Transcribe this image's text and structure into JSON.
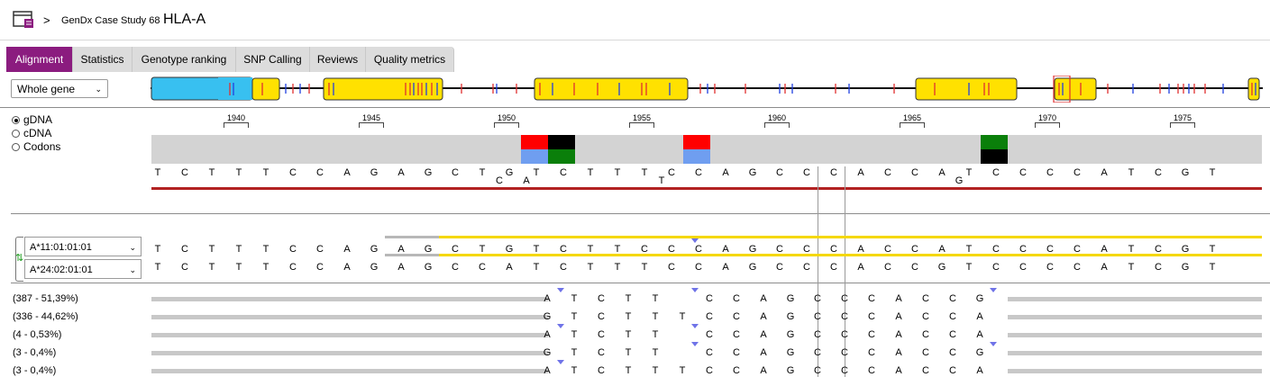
{
  "header": {
    "separator": ">",
    "case_name": "GenDx Case Study 68",
    "locus": "HLA-A"
  },
  "tabs": [
    {
      "label": "Alignment",
      "active": true
    },
    {
      "label": "Statistics",
      "active": false
    },
    {
      "label": "Genotype ranking",
      "active": false
    },
    {
      "label": "SNP Calling",
      "active": false
    },
    {
      "label": "Reviews",
      "active": false
    },
    {
      "label": "Quality metrics",
      "active": false
    }
  ],
  "region_select": {
    "value": "Whole gene",
    "icon": "chevron-down-icon"
  },
  "view_modes": [
    {
      "label": "gDNA",
      "selected": true
    },
    {
      "label": "cDNA",
      "selected": false
    },
    {
      "label": "Codons",
      "selected": false
    }
  ],
  "position_ticks": [
    "1940",
    "1945",
    "1950",
    "1955",
    "1960",
    "1965",
    "1970",
    "1975"
  ],
  "consensus": {
    "bases": [
      "T",
      "C",
      "T",
      "T",
      "T",
      "C",
      "C",
      "A",
      "G",
      "A",
      "G",
      "C",
      "T",
      "G",
      "T",
      "C",
      "T",
      "T",
      "T",
      "C",
      "C",
      "A",
      "G",
      "C",
      "C",
      "C",
      "A",
      "C",
      "C",
      "A",
      "T",
      "C",
      "C",
      "C",
      "C",
      "A",
      "T",
      "C",
      "G",
      "T"
    ],
    "alt_bases": [
      "",
      "",
      "",
      "",
      "",
      "",
      "",
      "",
      "",
      "",
      "",
      "",
      "C",
      "A",
      "",
      "",
      "",
      "",
      "T",
      "",
      "",
      "",
      "",
      "",
      "",
      "",
      "",
      "",
      "",
      "G",
      "",
      "",
      "",
      "",
      "",
      "",
      "",
      "",
      "",
      ""
    ]
  },
  "alleles": [
    {
      "name": "A*11:01:01:01",
      "bases": [
        "T",
        "C",
        "T",
        "T",
        "T",
        "C",
        "C",
        "A",
        "G",
        "A",
        "G",
        "C",
        "T",
        "G",
        "T",
        "C",
        "T",
        "T",
        "C",
        "C",
        "C",
        "A",
        "G",
        "C",
        "C",
        "C",
        "A",
        "C",
        "C",
        "A",
        "T",
        "C",
        "C",
        "C",
        "C",
        "A",
        "T",
        "C",
        "G",
        "T"
      ]
    },
    {
      "name": "A*24:02:01:01",
      "bases": [
        "T",
        "C",
        "T",
        "T",
        "T",
        "C",
        "C",
        "A",
        "G",
        "A",
        "G",
        "C",
        "C",
        "A",
        "T",
        "C",
        "T",
        "T",
        "T",
        "C",
        "C",
        "A",
        "G",
        "C",
        "C",
        "C",
        "A",
        "C",
        "C",
        "G",
        "T",
        "C",
        "C",
        "C",
        "C",
        "A",
        "T",
        "C",
        "G",
        "T"
      ]
    }
  ],
  "reads": [
    {
      "label": "(387 - 51,39%)",
      "bases": [
        "A",
        "T",
        "C",
        "T",
        "T",
        "C",
        "C",
        "A",
        "G",
        "C",
        "C",
        "C",
        "A",
        "C",
        "C",
        "G"
      ]
    },
    {
      "label": "(336 - 44,62%)",
      "bases": [
        "G",
        "T",
        "C",
        "T",
        "T",
        "T",
        "C",
        "C",
        "A",
        "G",
        "C",
        "C",
        "C",
        "A",
        "C",
        "C",
        "A"
      ]
    },
    {
      "label": "(4 - 0,53%)",
      "bases": [
        "A",
        "T",
        "C",
        "T",
        "T",
        "C",
        "C",
        "A",
        "G",
        "C",
        "C",
        "C",
        "A",
        "C",
        "C",
        "A"
      ]
    },
    {
      "label": "(3 - 0,4%)",
      "bases": [
        "G",
        "T",
        "C",
        "T",
        "T",
        "C",
        "C",
        "A",
        "G",
        "C",
        "C",
        "C",
        "A",
        "C",
        "C",
        "G"
      ]
    },
    {
      "label": "(3 - 0,4%)",
      "bases": [
        "A",
        "T",
        "C",
        "T",
        "T",
        "T",
        "C",
        "C",
        "A",
        "G",
        "C",
        "C",
        "C",
        "A",
        "C",
        "C",
        "A"
      ]
    }
  ],
  "colors": {
    "accent": "#8b1c7f",
    "exon": "#ffe100",
    "utr": "#38c0f0",
    "snp_red": "#ff0000",
    "snp_blue": "#6f9ef0",
    "snp_green": "#0a7f0a",
    "snp_black": "#000000",
    "allele_line": "#f5d800"
  }
}
